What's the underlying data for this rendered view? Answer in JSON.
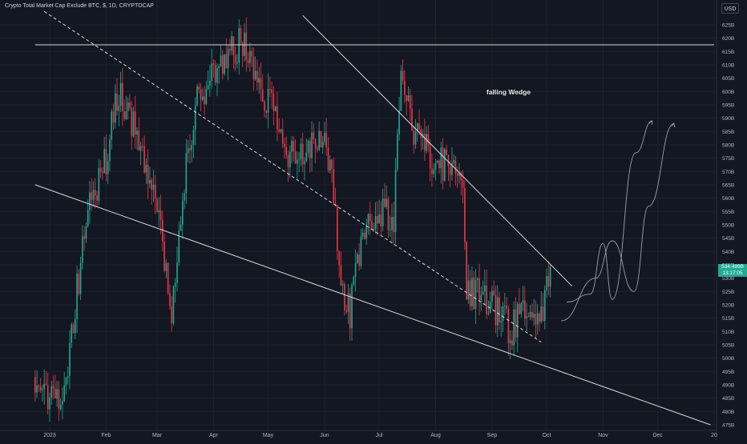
{
  "header": {
    "title": "Crypto Total Market Cap Exclude BTC, $, 1D, CRYPTOCAP",
    "currency_button": "USD"
  },
  "annotation": "falling Wedge",
  "price_tag": {
    "value": "534.499B",
    "countdown": "13:17:05"
  },
  "colors": {
    "background": "#131722",
    "up": "#22ab94",
    "down": "#f23645",
    "grid": "#1e222d",
    "text": "#b2b5be"
  },
  "chart_data": {
    "type": "candlestick",
    "title": "Crypto Total Market Cap Exclude BTC, $, 1D, CRYPTOCAP",
    "x_tick_labels": [
      "2023",
      "Feb",
      "Mar",
      "Apr",
      "May",
      "Jun",
      "Jul",
      "Aug",
      "Sep",
      "Oct",
      "Nov",
      "Dec",
      "20"
    ],
    "x_ticks": [
      "2023-01-01",
      "2023-02-01",
      "2023-03-01",
      "2023-04-01",
      "2023-05-01",
      "2023-06-01",
      "2023-07-01",
      "2023-08-01",
      "2023-09-01",
      "2023-10-01",
      "2023-11-01",
      "2023-12-01",
      "2024-01-01"
    ],
    "y_tick_labels": [
      "625B",
      "620B",
      "615B",
      "610B",
      "605B",
      "600B",
      "595B",
      "590B",
      "585B",
      "580B",
      "575B",
      "570B",
      "565B",
      "560B",
      "555B",
      "550B",
      "545B",
      "540B",
      "535B",
      "530B",
      "525B",
      "520B",
      "515B",
      "510B",
      "505B",
      "500B",
      "495B",
      "490B",
      "485B",
      "480B",
      "475B"
    ],
    "y_ticks": [
      625,
      620,
      615,
      610,
      605,
      600,
      595,
      590,
      585,
      580,
      575,
      570,
      565,
      560,
      555,
      550,
      545,
      540,
      535,
      530,
      525,
      520,
      515,
      510,
      505,
      500,
      495,
      490,
      485,
      480,
      475
    ],
    "y_unit": "B",
    "ylim": [
      473.5,
      630
    ],
    "last_price": 534.499,
    "anchors": [
      {
        "date": "2022-12-24",
        "value": 493
      },
      {
        "date": "2023-01-01",
        "value": 485
      },
      {
        "date": "2023-01-09",
        "value": 484
      },
      {
        "date": "2023-01-15",
        "value": 520
      },
      {
        "date": "2023-01-22",
        "value": 555
      },
      {
        "date": "2023-02-01",
        "value": 575
      },
      {
        "date": "2023-02-08",
        "value": 600
      },
      {
        "date": "2023-02-14",
        "value": 590
      },
      {
        "date": "2023-02-20",
        "value": 580
      },
      {
        "date": "2023-03-01",
        "value": 555
      },
      {
        "date": "2023-03-09",
        "value": 515
      },
      {
        "date": "2023-03-15",
        "value": 560
      },
      {
        "date": "2023-03-22",
        "value": 595
      },
      {
        "date": "2023-04-01",
        "value": 605
      },
      {
        "date": "2023-04-10",
        "value": 615
      },
      {
        "date": "2023-04-18",
        "value": 620
      },
      {
        "date": "2023-04-25",
        "value": 600
      },
      {
        "date": "2023-05-01",
        "value": 598
      },
      {
        "date": "2023-05-10",
        "value": 578
      },
      {
        "date": "2023-05-20",
        "value": 576
      },
      {
        "date": "2023-06-01",
        "value": 585
      },
      {
        "date": "2023-06-06",
        "value": 560
      },
      {
        "date": "2023-06-10",
        "value": 522
      },
      {
        "date": "2023-06-15",
        "value": 518
      },
      {
        "date": "2023-06-22",
        "value": 550
      },
      {
        "date": "2023-07-01",
        "value": 556
      },
      {
        "date": "2023-07-09",
        "value": 553
      },
      {
        "date": "2023-07-13",
        "value": 605
      },
      {
        "date": "2023-07-20",
        "value": 585
      },
      {
        "date": "2023-07-30",
        "value": 576
      },
      {
        "date": "2023-08-08",
        "value": 570
      },
      {
        "date": "2023-08-16",
        "value": 568
      },
      {
        "date": "2023-08-18",
        "value": 525
      },
      {
        "date": "2023-08-25",
        "value": 525
      },
      {
        "date": "2023-09-01",
        "value": 520
      },
      {
        "date": "2023-09-11",
        "value": 510
      },
      {
        "date": "2023-09-20",
        "value": 520
      },
      {
        "date": "2023-09-28",
        "value": 515
      },
      {
        "date": "2023-10-03",
        "value": 534.5
      }
    ],
    "lines": [
      {
        "name": "horizontal-resistance",
        "points": [
          [
            "2022-12-24",
            617.5
          ],
          [
            "2024-01-01",
            617.5
          ]
        ]
      },
      {
        "name": "wedge-upper-trendline",
        "points": [
          [
            "2023-05-20",
            628.5
          ],
          [
            "2023-10-15",
            527
          ]
        ]
      },
      {
        "name": "dashed-trendline",
        "points": [
          [
            "2022-12-29",
            630
          ],
          [
            "2023-09-28",
            506
          ]
        ]
      },
      {
        "name": "wedge-lower-trendline",
        "points": [
          [
            "2022-12-24",
            565
          ],
          [
            "2023-12-30",
            475
          ]
        ]
      }
    ],
    "projection_curves": [
      {
        "name": "projection-curve-1",
        "points": [
          [
            "2023-10-12",
            521
          ],
          [
            "2023-10-25",
            524
          ],
          [
            "2023-11-01",
            543
          ],
          [
            "2023-11-06",
            522
          ],
          [
            "2023-11-19",
            577
          ],
          [
            "2023-11-28",
            589
          ]
        ]
      },
      {
        "name": "projection-curve-2",
        "points": [
          [
            "2023-10-09",
            514
          ],
          [
            "2023-10-28",
            530
          ],
          [
            "2023-11-06",
            544
          ],
          [
            "2023-11-18",
            525
          ],
          [
            "2023-11-26",
            557
          ],
          [
            "2023-12-10",
            588
          ]
        ]
      }
    ],
    "grid": true,
    "legend": "none"
  }
}
